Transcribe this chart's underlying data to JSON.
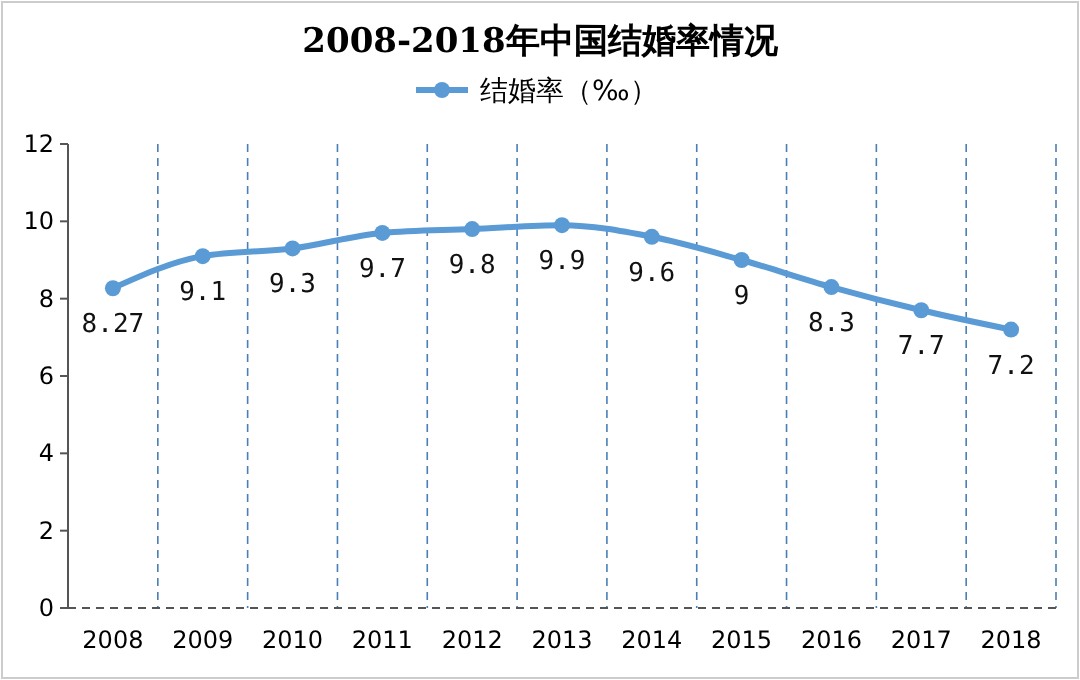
{
  "chart_data": {
    "type": "line",
    "title": "2008-2018年中国结婚率情况",
    "categories": [
      "2008",
      "2009",
      "2010",
      "2011",
      "2012",
      "2013",
      "2014",
      "2015",
      "2016",
      "2017",
      "2018"
    ],
    "series": [
      {
        "name": "结婚率（‰）",
        "color": "#5b9bd5",
        "values": [
          8.27,
          9.1,
          9.3,
          9.7,
          9.8,
          9.9,
          9.6,
          9,
          8.3,
          7.7,
          7.2
        ]
      }
    ],
    "ylim": [
      0,
      12
    ],
    "yticks": [
      0,
      2,
      4,
      6,
      8,
      10,
      12
    ],
    "grid": "x",
    "legend": "top",
    "marker": "circle",
    "line_style": "solid",
    "data_labels": true
  }
}
